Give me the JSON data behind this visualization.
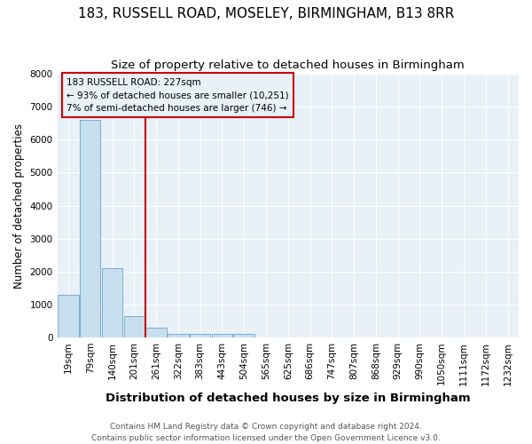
{
  "title": "183, RUSSELL ROAD, MOSELEY, BIRMINGHAM, B13 8RR",
  "subtitle": "Size of property relative to detached houses in Birmingham",
  "xlabel": "Distribution of detached houses by size in Birmingham",
  "ylabel": "Number of detached properties",
  "footer_line1": "Contains HM Land Registry data © Crown copyright and database right 2024.",
  "footer_line2": "Contains public sector information licensed under the Open Government Licence v3.0.",
  "categories": [
    "19sqm",
    "79sqm",
    "140sqm",
    "201sqm",
    "261sqm",
    "322sqm",
    "383sqm",
    "443sqm",
    "504sqm",
    "565sqm",
    "625sqm",
    "686sqm",
    "747sqm",
    "807sqm",
    "868sqm",
    "929sqm",
    "990sqm",
    "1050sqm",
    "1111sqm",
    "1172sqm",
    "1232sqm"
  ],
  "values": [
    1300,
    6600,
    2100,
    650,
    300,
    100,
    100,
    100,
    100,
    0,
    0,
    0,
    0,
    0,
    0,
    0,
    0,
    0,
    0,
    0,
    0
  ],
  "bar_color": "#c8dff0",
  "bar_edge_color": "#7aaecc",
  "plot_bg_color": "#e8f0f8",
  "fig_bg_color": "#ffffff",
  "ylim": [
    0,
    8000
  ],
  "yticks": [
    0,
    1000,
    2000,
    3000,
    4000,
    5000,
    6000,
    7000,
    8000
  ],
  "property_line_x": 3.5,
  "property_line_color": "#cc0000",
  "annotation_text": "183 RUSSELL ROAD: 227sqm\n← 93% of detached houses are smaller (10,251)\n7% of semi-detached houses are larger (746) →",
  "annotation_box_color": "#cc0000",
  "grid_color": "#ffffff",
  "title_fontsize": 11,
  "subtitle_fontsize": 9.5,
  "tick_fontsize": 7.5,
  "ylabel_fontsize": 8.5,
  "xlabel_fontsize": 9.5,
  "footer_fontsize": 6.5
}
